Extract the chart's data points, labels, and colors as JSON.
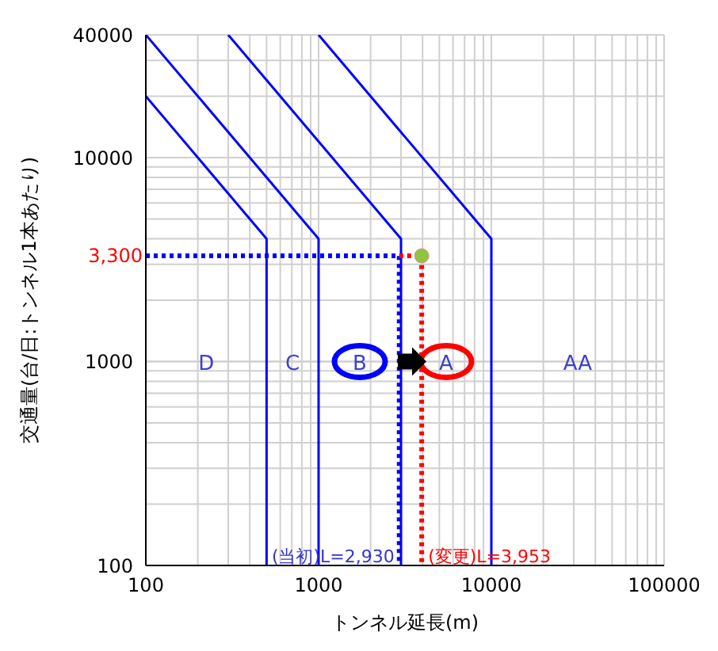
{
  "chart_data": {
    "type": "line",
    "xlabel": "トンネル延長(m)",
    "ylabel": "交通量(台/日:トンネル1本あたり)",
    "log": "xy",
    "xlim": [
      100,
      100000
    ],
    "xticks": [
      100,
      1000,
      10000,
      100000
    ],
    "ylim": [
      100,
      40000
    ],
    "yticks": [
      100,
      1000,
      10000,
      40000
    ],
    "grid": true,
    "marker": "none",
    "series": [
      {
        "color": "#0000ff",
        "x": [
          100,
          500,
          500
        ],
        "values": [
          20000,
          4000,
          100
        ],
        "line_style": "solid"
      },
      {
        "color": "#0000ff",
        "x": [
          100,
          1000,
          1000
        ],
        "values": [
          40000,
          4000,
          100
        ],
        "line_style": "solid"
      },
      {
        "color": "#0000ff",
        "x": [
          300,
          3000,
          3000
        ],
        "values": [
          40000,
          4000,
          100
        ],
        "line_style": "solid"
      },
      {
        "color": "#0000ff",
        "x": [
          1000,
          10000,
          10000
        ],
        "values": [
          40000,
          4000,
          100
        ],
        "line_style": "solid"
      },
      {
        "color": "#0000ff",
        "x": [
          100,
          2930,
          2930
        ],
        "values": [
          3300,
          3300,
          100
        ],
        "line_style": "dotted"
      },
      {
        "color": "#ff0000",
        "x": [
          2930,
          3953,
          3953
        ],
        "values": [
          3300,
          3300,
          100
        ],
        "line_style": "dotted"
      },
      {
        "type": "scatter",
        "color": "#8cc63f",
        "x": [
          3953
        ],
        "values": [
          3300
        ],
        "marker": "circle"
      }
    ],
    "annotations": [
      "D",
      "C",
      "B",
      "A",
      "AA",
      "3,300",
      {
        "text": "(当初)L=2,930",
        "x": 2930,
        "y": 100
      },
      {
        "text": "(変更)L=3,953",
        "x": 3953,
        "y": 100
      }
    ]
  }
}
